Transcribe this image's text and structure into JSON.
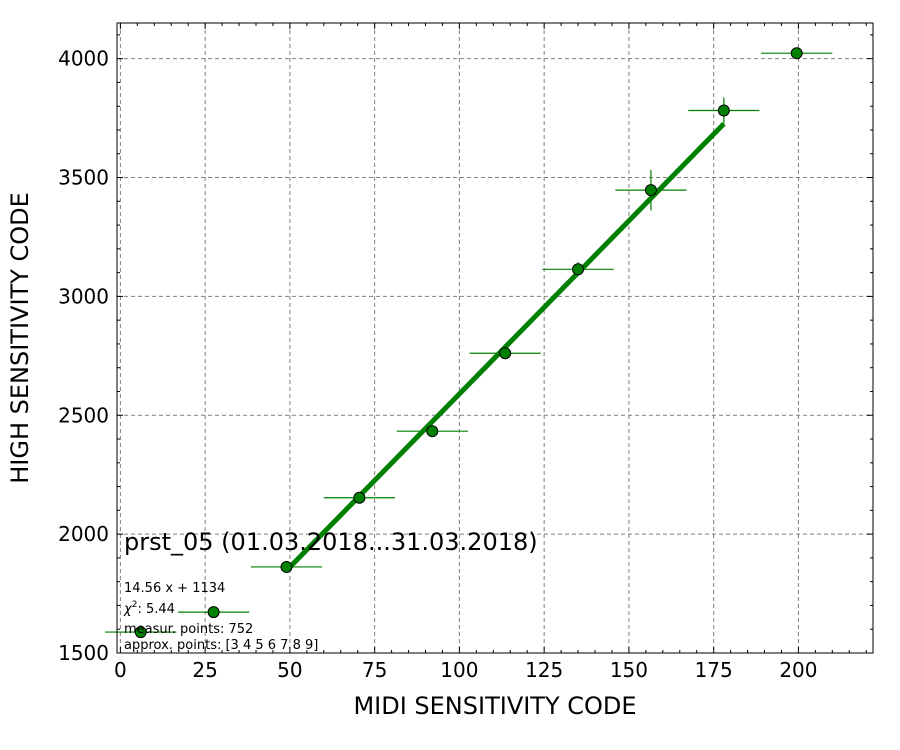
{
  "chart_data": {
    "type": "scatter",
    "title": "prst_05 (01.03.2018...31.03.2018)",
    "xlabel": "MIDI SENSITIVITY CODE",
    "ylabel": "HIGH SENSITIVITY CODE",
    "xlim": [
      -1,
      222
    ],
    "ylim": [
      1500,
      4150
    ],
    "xticks": [
      0,
      25,
      50,
      75,
      100,
      125,
      150,
      175,
      200
    ],
    "yticks": [
      1500,
      2000,
      2500,
      3000,
      3500,
      4000
    ],
    "grid": true,
    "series": [
      {
        "kind": "points",
        "color": "#008000",
        "x": [
          6,
          27.5,
          49,
          70.5,
          92,
          113.5,
          135,
          156.5,
          178,
          199.5
        ],
        "y": [
          1588,
          1672,
          1862,
          2153,
          2433,
          2761,
          3114,
          3447,
          3782,
          4023
        ],
        "xerr": [
          10.5,
          10.5,
          10.5,
          10.5,
          10.5,
          10.5,
          10.5,
          10.5,
          10.5,
          10.5
        ],
        "yerr": [
          6,
          6,
          10,
          15,
          20,
          25,
          30,
          85,
          55,
          8
        ]
      },
      {
        "kind": "fit",
        "color": "#008000",
        "x": [
          49,
          178
        ],
        "y": [
          1847,
          3726
        ]
      }
    ],
    "annotations": {
      "fit": "14.56 x + 1134",
      "chi2_symbol": "χ",
      "chi2_power": "2",
      "chi2_value": ": 5.44",
      "measur": "measur. points: 752",
      "approx": "approx. points: [3 4 5 6 7 8 9]"
    }
  }
}
